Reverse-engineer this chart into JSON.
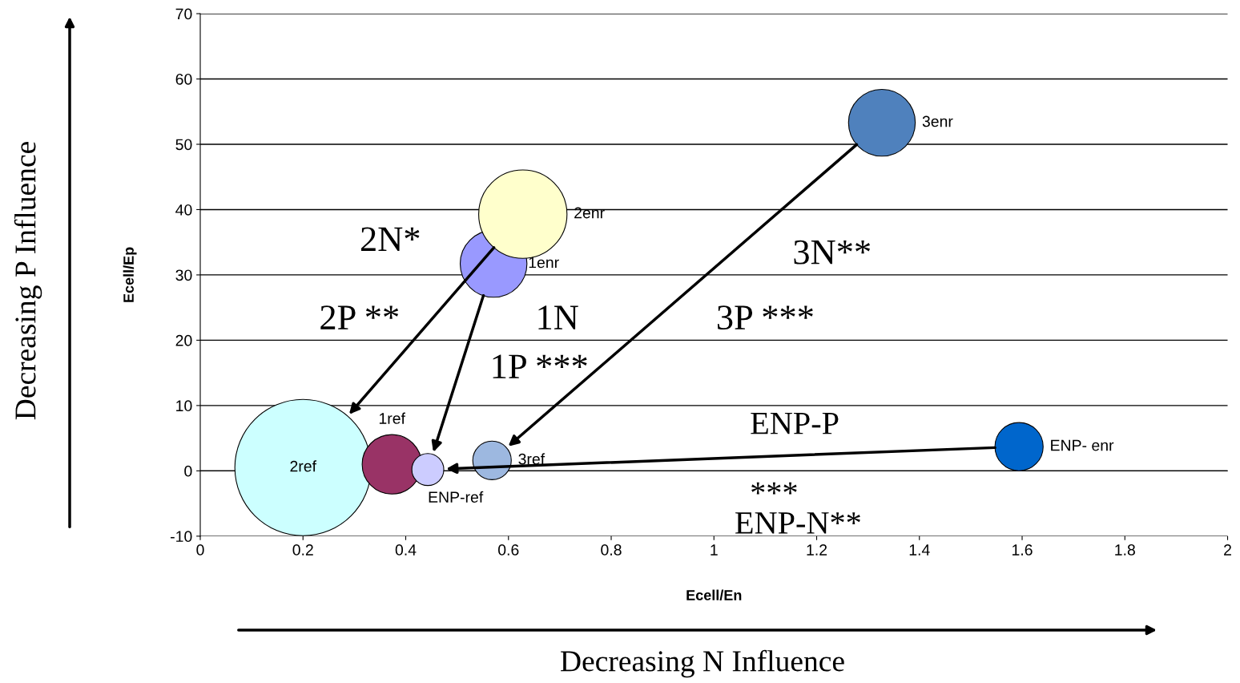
{
  "chart_data": {
    "type": "bubble",
    "xlabel": "Ecell/En",
    "ylabel": "Ecell/Ep",
    "series": [
      {
        "name": "2ref",
        "color": "#ccffff",
        "x": [
          0.2
        ],
        "values": [
          0.5
        ],
        "sizes": [
          1
        ]
      },
      {
        "name": "1ref",
        "color": "#993366",
        "x": [
          0.373
        ],
        "values": [
          1.0
        ],
        "sizes": [
          0.19
        ]
      },
      {
        "name": "ENP-ref",
        "color": "#ccccff",
        "x": [
          0.443
        ],
        "values": [
          0.2
        ],
        "sizes": [
          0.055
        ]
      },
      {
        "name": "3ref",
        "color": "#9db8e0",
        "x": [
          0.568
        ],
        "values": [
          1.6
        ],
        "sizes": [
          0.08
        ]
      },
      {
        "name": "1enr",
        "color": "#9999ff",
        "x": [
          0.571
        ],
        "values": [
          31.7
        ],
        "sizes": [
          0.24
        ]
      },
      {
        "name": "2enr",
        "color": "#ffffcc",
        "x": [
          0.628
        ],
        "values": [
          39.3
        ],
        "sizes": [
          0.42
        ]
      },
      {
        "name": "3enr",
        "color": "#4f81bd",
        "x": [
          1.327
        ],
        "values": [
          53.3
        ],
        "sizes": [
          0.24
        ]
      },
      {
        "name": "ENP- enr",
        "color": "#0066cc",
        "x": [
          1.594
        ],
        "values": [
          3.7
        ],
        "sizes": [
          0.125
        ]
      }
    ],
    "xlim": [
      0,
      2
    ],
    "xticks": [
      0,
      0.2,
      0.4,
      0.6,
      0.8,
      1,
      1.2,
      1.4,
      1.6,
      1.8,
      2
    ],
    "ylim": [
      -10,
      70
    ],
    "yticks": [
      -10,
      0,
      10,
      20,
      30,
      40,
      50,
      60,
      70
    ],
    "grid": "y",
    "annotations": [
      "2N*",
      "2P **",
      "1N",
      "1P ***",
      "3N**",
      "3P ***",
      "ENP-P\n***",
      "ENP-N**",
      "Decreasing P Influence",
      "Decreasing N Influence"
    ]
  }
}
